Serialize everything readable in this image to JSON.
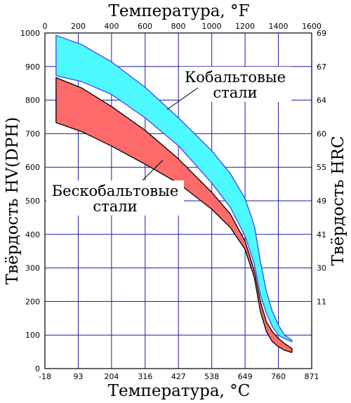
{
  "chart_data": {
    "type": "area",
    "title": "",
    "xlabel": "Температура, °C",
    "x2label": "Температура, °F",
    "ylabel": "Твёрдость HV(DPH)",
    "y2label": "Твёрдость HRC",
    "xlim": [
      -18,
      871
    ],
    "ylim": [
      0,
      1000
    ],
    "x_ticks": [
      "-18",
      "93",
      "204",
      "316",
      "427",
      "538",
      "649",
      "760",
      "871"
    ],
    "x_tick_values": [
      -18,
      93,
      204,
      316,
      427,
      538,
      649,
      760,
      871
    ],
    "x2_ticks": [
      "0",
      "200",
      "400",
      "600",
      "800",
      "1000",
      "1200",
      "1400",
      "1600"
    ],
    "y_ticks": [
      "0",
      "100",
      "200",
      "300",
      "400",
      "500",
      "600",
      "700",
      "800",
      "900",
      "1000"
    ],
    "y_tick_values": [
      0,
      100,
      200,
      300,
      400,
      500,
      600,
      700,
      800,
      900,
      1000
    ],
    "y2_ticks": [
      "11",
      "30",
      "41",
      "49",
      "55",
      "60",
      "64",
      "67",
      "69"
    ],
    "y2_tick_positions": [
      200,
      300,
      400,
      500,
      600,
      700,
      800,
      900,
      1000
    ],
    "grid": true,
    "series": [
      {
        "name": "Кобальтовые стали",
        "color": "#4dfaff",
        "edge_color": "#4040ff",
        "upper": [
          [
            19,
            993
          ],
          [
            105,
            965
          ],
          [
            204,
            914
          ],
          [
            316,
            838
          ],
          [
            427,
            747
          ],
          [
            538,
            649
          ],
          [
            600,
            581
          ],
          [
            649,
            507
          ],
          [
            680,
            425
          ],
          [
            700,
            320
          ],
          [
            720,
            230
          ],
          [
            740,
            170
          ],
          [
            760,
            130
          ],
          [
            780,
            100
          ],
          [
            805,
            85
          ]
        ],
        "lower": [
          [
            19,
            873
          ],
          [
            105,
            855
          ],
          [
            204,
            817
          ],
          [
            316,
            747
          ],
          [
            427,
            664
          ],
          [
            538,
            553
          ],
          [
            600,
            480
          ],
          [
            649,
            395
          ],
          [
            680,
            310
          ],
          [
            700,
            220
          ],
          [
            720,
            165
          ],
          [
            740,
            125
          ],
          [
            760,
            100
          ],
          [
            780,
            90
          ],
          [
            805,
            80
          ]
        ]
      },
      {
        "name": "Бескобальтовые стали",
        "color": "#ff6a6a",
        "edge_color": "#000000",
        "upper": [
          [
            19,
            867
          ],
          [
            105,
            836
          ],
          [
            204,
            781
          ],
          [
            316,
            710
          ],
          [
            427,
            625
          ],
          [
            538,
            525
          ],
          [
            600,
            460
          ],
          [
            649,
            380
          ],
          [
            680,
            290
          ],
          [
            700,
            200
          ],
          [
            720,
            140
          ],
          [
            740,
            110
          ],
          [
            760,
            90
          ],
          [
            780,
            75
          ],
          [
            805,
            60
          ]
        ],
        "lower": [
          [
            19,
            733
          ],
          [
            105,
            706
          ],
          [
            204,
            663
          ],
          [
            316,
            609
          ],
          [
            427,
            552
          ],
          [
            538,
            475
          ],
          [
            600,
            420
          ],
          [
            649,
            355
          ],
          [
            680,
            270
          ],
          [
            700,
            170
          ],
          [
            720,
            110
          ],
          [
            740,
            80
          ],
          [
            760,
            65
          ],
          [
            780,
            55
          ],
          [
            805,
            48
          ]
        ]
      }
    ],
    "annotations": [
      {
        "text_lines": [
          "Кобальтовые",
          "стали"
        ],
        "series": "Кобальтовые стали"
      },
      {
        "text_lines": [
          "Бескобальтовые",
          "стали"
        ],
        "series": "Бескобальтовые стали"
      }
    ]
  }
}
